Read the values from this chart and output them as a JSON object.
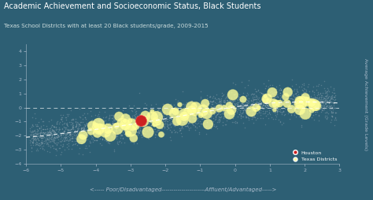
{
  "title": "Academic Achievement and Socioeconomic Status, Black Students",
  "subtitle": "Texas School Districts with at least 20 Black students/grade, 2009-2015",
  "xlabel_arrow": "<----- Poor/Disadvantaged----------------------Affluent/Advantaged----->",
  "ylabel": "Average Achievement (Grade Levels)",
  "bg_color": "#2D5F74",
  "xlim": [
    -6,
    3
  ],
  "ylim": [
    -4,
    4.5
  ],
  "xticks": [
    -6,
    -5,
    -4,
    -3,
    -2,
    -1,
    0,
    1,
    2,
    3
  ],
  "yticks": [
    -4,
    -3,
    -2,
    -1,
    0,
    1,
    2,
    3,
    4
  ],
  "dashed_y": 0,
  "houston_x": -2.7,
  "houston_y": -0.9,
  "trend_x": [
    -6,
    -5.5,
    -5,
    -4.5,
    -4,
    -3.5,
    -3,
    -2.5,
    -2,
    -1.5,
    -1,
    -0.5,
    0,
    0.5,
    1,
    1.5,
    2,
    2.5,
    3
  ],
  "trend_y": [
    -2.1,
    -2.0,
    -1.85,
    -1.7,
    -1.55,
    -1.38,
    -1.2,
    -1.0,
    -0.8,
    -0.58,
    -0.35,
    -0.15,
    0.05,
    0.2,
    0.32,
    0.38,
    0.4,
    0.38,
    0.32
  ],
  "scatter_color": "#A0B4BE",
  "texas_color": "#FFFF99",
  "houston_color": "#CC2222",
  "title_color": "#FFFFFF",
  "subtitle_color": "#CCDDDD",
  "tick_color": "#AABBCC",
  "ylabel_color": "#AABBCC",
  "xlabel_color": "#AABBCC",
  "seed": 42,
  "n_scatter": 3000,
  "n_texas": 100
}
